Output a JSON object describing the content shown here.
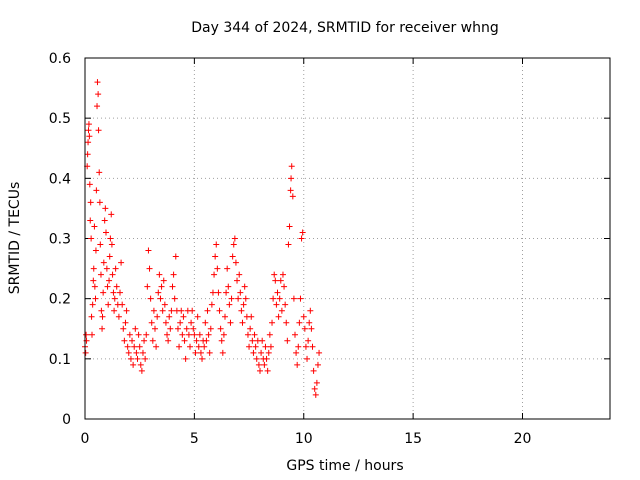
{
  "chart_data": {
    "type": "scatter",
    "title": "Day 344 of 2024, SRMTID for receiver whng",
    "xlabel": "GPS time / hours",
    "ylabel": "SRMTID / TECUs",
    "xlim": [
      0,
      24
    ],
    "ylim": [
      0,
      0.6
    ],
    "xticks": [
      0,
      5,
      10,
      15,
      20
    ],
    "xtick_labels": [
      "0",
      "5",
      "10",
      "15",
      "20"
    ],
    "yticks": [
      0,
      0.1,
      0.2,
      0.3,
      0.4,
      0.5,
      0.6
    ],
    "ytick_labels": [
      "0",
      "0.1",
      "0.2",
      "0.3",
      "0.4",
      "0.5",
      "0.6"
    ],
    "grid": true,
    "marker": "+",
    "color": "#ff0000",
    "series": [
      {
        "name": "SRMTID",
        "points": [
          [
            0.0,
            0.12
          ],
          [
            0.03,
            0.11
          ],
          [
            0.05,
            0.14
          ],
          [
            0.07,
            0.13
          ],
          [
            0.1,
            0.42
          ],
          [
            0.12,
            0.44
          ],
          [
            0.14,
            0.46
          ],
          [
            0.16,
            0.48
          ],
          [
            0.18,
            0.49
          ],
          [
            0.2,
            0.47
          ],
          [
            0.22,
            0.39
          ],
          [
            0.24,
            0.33
          ],
          [
            0.26,
            0.36
          ],
          [
            0.28,
            0.3
          ],
          [
            0.3,
            0.17
          ],
          [
            0.32,
            0.14
          ],
          [
            0.35,
            0.19
          ],
          [
            0.38,
            0.23
          ],
          [
            0.4,
            0.25
          ],
          [
            0.43,
            0.32
          ],
          [
            0.45,
            0.22
          ],
          [
            0.48,
            0.2
          ],
          [
            0.5,
            0.28
          ],
          [
            0.52,
            0.38
          ],
          [
            0.55,
            0.52
          ],
          [
            0.57,
            0.56
          ],
          [
            0.6,
            0.54
          ],
          [
            0.62,
            0.48
          ],
          [
            0.65,
            0.41
          ],
          [
            0.68,
            0.36
          ],
          [
            0.7,
            0.29
          ],
          [
            0.73,
            0.24
          ],
          [
            0.75,
            0.18
          ],
          [
            0.78,
            0.15
          ],
          [
            0.8,
            0.17
          ],
          [
            0.83,
            0.21
          ],
          [
            0.86,
            0.26
          ],
          [
            0.9,
            0.33
          ],
          [
            0.93,
            0.35
          ],
          [
            0.96,
            0.31
          ],
          [
            1.0,
            0.25
          ],
          [
            1.03,
            0.22
          ],
          [
            1.06,
            0.19
          ],
          [
            1.1,
            0.23
          ],
          [
            1.13,
            0.27
          ],
          [
            1.16,
            0.3
          ],
          [
            1.2,
            0.34
          ],
          [
            1.23,
            0.29
          ],
          [
            1.26,
            0.24
          ],
          [
            1.3,
            0.21
          ],
          [
            1.33,
            0.18
          ],
          [
            1.36,
            0.2
          ],
          [
            1.4,
            0.25
          ],
          [
            1.45,
            0.22
          ],
          [
            1.5,
            0.19
          ],
          [
            1.55,
            0.17
          ],
          [
            1.6,
            0.21
          ],
          [
            1.65,
            0.26
          ],
          [
            1.7,
            0.19
          ],
          [
            1.75,
            0.15
          ],
          [
            1.8,
            0.13
          ],
          [
            1.85,
            0.16
          ],
          [
            1.9,
            0.18
          ],
          [
            1.95,
            0.12
          ],
          [
            2.0,
            0.11
          ],
          [
            2.05,
            0.14
          ],
          [
            2.1,
            0.1
          ],
          [
            2.15,
            0.13
          ],
          [
            2.2,
            0.09
          ],
          [
            2.25,
            0.12
          ],
          [
            2.3,
            0.15
          ],
          [
            2.35,
            0.11
          ],
          [
            2.4,
            0.1
          ],
          [
            2.45,
            0.14
          ],
          [
            2.5,
            0.12
          ],
          [
            2.55,
            0.09
          ],
          [
            2.6,
            0.08
          ],
          [
            2.65,
            0.11
          ],
          [
            2.7,
            0.13
          ],
          [
            2.75,
            0.1
          ],
          [
            2.8,
            0.14
          ],
          [
            2.85,
            0.22
          ],
          [
            2.9,
            0.28
          ],
          [
            2.95,
            0.25
          ],
          [
            3.0,
            0.2
          ],
          [
            3.05,
            0.16
          ],
          [
            3.1,
            0.13
          ],
          [
            3.15,
            0.18
          ],
          [
            3.2,
            0.15
          ],
          [
            3.25,
            0.12
          ],
          [
            3.3,
            0.17
          ],
          [
            3.35,
            0.21
          ],
          [
            3.4,
            0.24
          ],
          [
            3.45,
            0.2
          ],
          [
            3.5,
            0.22
          ],
          [
            3.55,
            0.18
          ],
          [
            3.6,
            0.23
          ],
          [
            3.65,
            0.19
          ],
          [
            3.7,
            0.16
          ],
          [
            3.75,
            0.14
          ],
          [
            3.8,
            0.13
          ],
          [
            3.85,
            0.17
          ],
          [
            3.9,
            0.15
          ],
          [
            3.95,
            0.18
          ],
          [
            4.0,
            0.22
          ],
          [
            4.05,
            0.24
          ],
          [
            4.1,
            0.2
          ],
          [
            4.15,
            0.27
          ],
          [
            4.2,
            0.18
          ],
          [
            4.25,
            0.15
          ],
          [
            4.3,
            0.12
          ],
          [
            4.35,
            0.16
          ],
          [
            4.4,
            0.18
          ],
          [
            4.45,
            0.14
          ],
          [
            4.5,
            0.17
          ],
          [
            4.55,
            0.13
          ],
          [
            4.6,
            0.1
          ],
          [
            4.65,
            0.15
          ],
          [
            4.7,
            0.18
          ],
          [
            4.75,
            0.14
          ],
          [
            4.8,
            0.12
          ],
          [
            4.85,
            0.16
          ],
          [
            4.9,
            0.18
          ],
          [
            4.95,
            0.15
          ],
          [
            5.0,
            0.14
          ],
          [
            5.05,
            0.11
          ],
          [
            5.1,
            0.13
          ],
          [
            5.15,
            0.17
          ],
          [
            5.2,
            0.12
          ],
          [
            5.25,
            0.14
          ],
          [
            5.3,
            0.11
          ],
          [
            5.35,
            0.1
          ],
          [
            5.4,
            0.13
          ],
          [
            5.45,
            0.12
          ],
          [
            5.5,
            0.16
          ],
          [
            5.55,
            0.13
          ],
          [
            5.6,
            0.18
          ],
          [
            5.65,
            0.14
          ],
          [
            5.7,
            0.11
          ],
          [
            5.75,
            0.15
          ],
          [
            5.8,
            0.19
          ],
          [
            5.85,
            0.21
          ],
          [
            5.9,
            0.24
          ],
          [
            5.95,
            0.27
          ],
          [
            6.0,
            0.29
          ],
          [
            6.05,
            0.25
          ],
          [
            6.1,
            0.21
          ],
          [
            6.15,
            0.18
          ],
          [
            6.2,
            0.15
          ],
          [
            6.25,
            0.13
          ],
          [
            6.3,
            0.11
          ],
          [
            6.35,
            0.14
          ],
          [
            6.4,
            0.17
          ],
          [
            6.45,
            0.21
          ],
          [
            6.5,
            0.25
          ],
          [
            6.55,
            0.22
          ],
          [
            6.6,
            0.19
          ],
          [
            6.65,
            0.16
          ],
          [
            6.7,
            0.2
          ],
          [
            6.75,
            0.27
          ],
          [
            6.8,
            0.29
          ],
          [
            6.85,
            0.3
          ],
          [
            6.9,
            0.26
          ],
          [
            6.95,
            0.23
          ],
          [
            7.0,
            0.2
          ],
          [
            7.05,
            0.24
          ],
          [
            7.1,
            0.21
          ],
          [
            7.15,
            0.18
          ],
          [
            7.2,
            0.16
          ],
          [
            7.25,
            0.19
          ],
          [
            7.3,
            0.22
          ],
          [
            7.35,
            0.2
          ],
          [
            7.4,
            0.17
          ],
          [
            7.45,
            0.14
          ],
          [
            7.5,
            0.12
          ],
          [
            7.55,
            0.15
          ],
          [
            7.6,
            0.17
          ],
          [
            7.65,
            0.13
          ],
          [
            7.7,
            0.11
          ],
          [
            7.75,
            0.14
          ],
          [
            7.8,
            0.12
          ],
          [
            7.85,
            0.1
          ],
          [
            7.9,
            0.13
          ],
          [
            7.95,
            0.09
          ],
          [
            8.0,
            0.08
          ],
          [
            8.05,
            0.11
          ],
          [
            8.1,
            0.13
          ],
          [
            8.15,
            0.1
          ],
          [
            8.2,
            0.09
          ],
          [
            8.25,
            0.12
          ],
          [
            8.3,
            0.1
          ],
          [
            8.35,
            0.08
          ],
          [
            8.4,
            0.11
          ],
          [
            8.45,
            0.14
          ],
          [
            8.5,
            0.12
          ],
          [
            8.55,
            0.16
          ],
          [
            8.6,
            0.2
          ],
          [
            8.65,
            0.24
          ],
          [
            8.7,
            0.23
          ],
          [
            8.75,
            0.19
          ],
          [
            8.8,
            0.21
          ],
          [
            8.85,
            0.17
          ],
          [
            8.9,
            0.2
          ],
          [
            8.95,
            0.23
          ],
          [
            9.0,
            0.18
          ],
          [
            9.05,
            0.24
          ],
          [
            9.1,
            0.22
          ],
          [
            9.15,
            0.19
          ],
          [
            9.2,
            0.16
          ],
          [
            9.25,
            0.13
          ],
          [
            9.3,
            0.29
          ],
          [
            9.35,
            0.32
          ],
          [
            9.4,
            0.38
          ],
          [
            9.42,
            0.4
          ],
          [
            9.45,
            0.42
          ],
          [
            9.5,
            0.37
          ],
          [
            9.55,
            0.2
          ],
          [
            9.6,
            0.14
          ],
          [
            9.65,
            0.11
          ],
          [
            9.7,
            0.09
          ],
          [
            9.75,
            0.12
          ],
          [
            9.8,
            0.16
          ],
          [
            9.85,
            0.2
          ],
          [
            9.9,
            0.3
          ],
          [
            9.95,
            0.31
          ],
          [
            10.0,
            0.17
          ],
          [
            10.05,
            0.15
          ],
          [
            10.1,
            0.12
          ],
          [
            10.15,
            0.1
          ],
          [
            10.2,
            0.13
          ],
          [
            10.25,
            0.16
          ],
          [
            10.3,
            0.18
          ],
          [
            10.35,
            0.15
          ],
          [
            10.4,
            0.12
          ],
          [
            10.45,
            0.08
          ],
          [
            10.5,
            0.05
          ],
          [
            10.55,
            0.04
          ],
          [
            10.6,
            0.06
          ],
          [
            10.65,
            0.09
          ],
          [
            10.7,
            0.11
          ]
        ]
      }
    ]
  }
}
